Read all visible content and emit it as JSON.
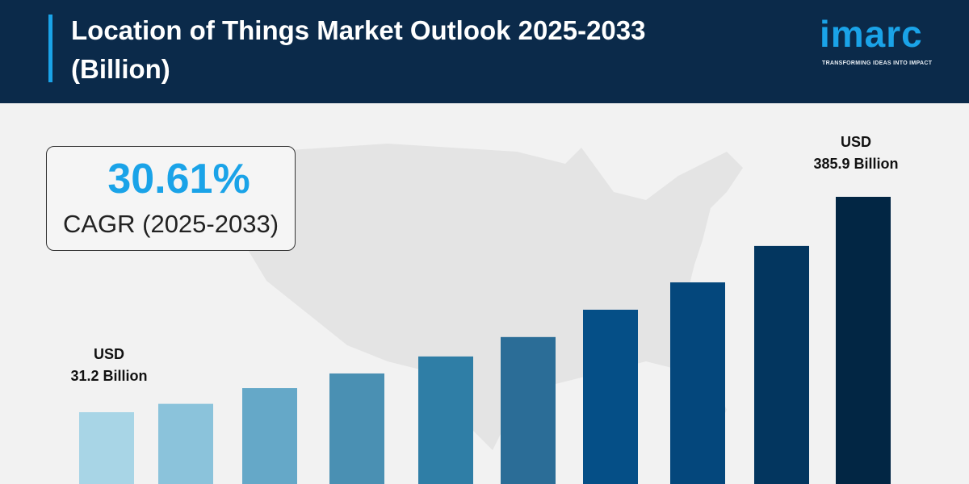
{
  "header": {
    "title": "Location of Things Market Outlook 2025-2033 (Billion)"
  },
  "logo": {
    "name": "imarc",
    "tagline": "TRANSFORMING IDEAS INTO IMPACT",
    "accent": "#1aa3e8"
  },
  "cagr": {
    "value": "30.61%",
    "label": "CAGR (2025-2033)"
  },
  "chart_data": {
    "type": "bar",
    "title": "Location of Things Market Outlook 2025-2033 (Billion)",
    "values": [
      31.2,
      45,
      71,
      95,
      123,
      155,
      200,
      245,
      305,
      385.9
    ],
    "annotations": [
      {
        "bar": 0,
        "line1": "USD",
        "line2": "31.2 Billion"
      },
      {
        "bar": 9,
        "line1": "USD",
        "line2": "385.9 Billion"
      }
    ],
    "colors": [
      "#a8d5e6",
      "#8bc3db",
      "#65a8c8",
      "#4a90b3",
      "#2f7ea6",
      "#2b6d97",
      "#054f87",
      "#04477c",
      "#03365f",
      "#022644"
    ],
    "grid": false
  }
}
